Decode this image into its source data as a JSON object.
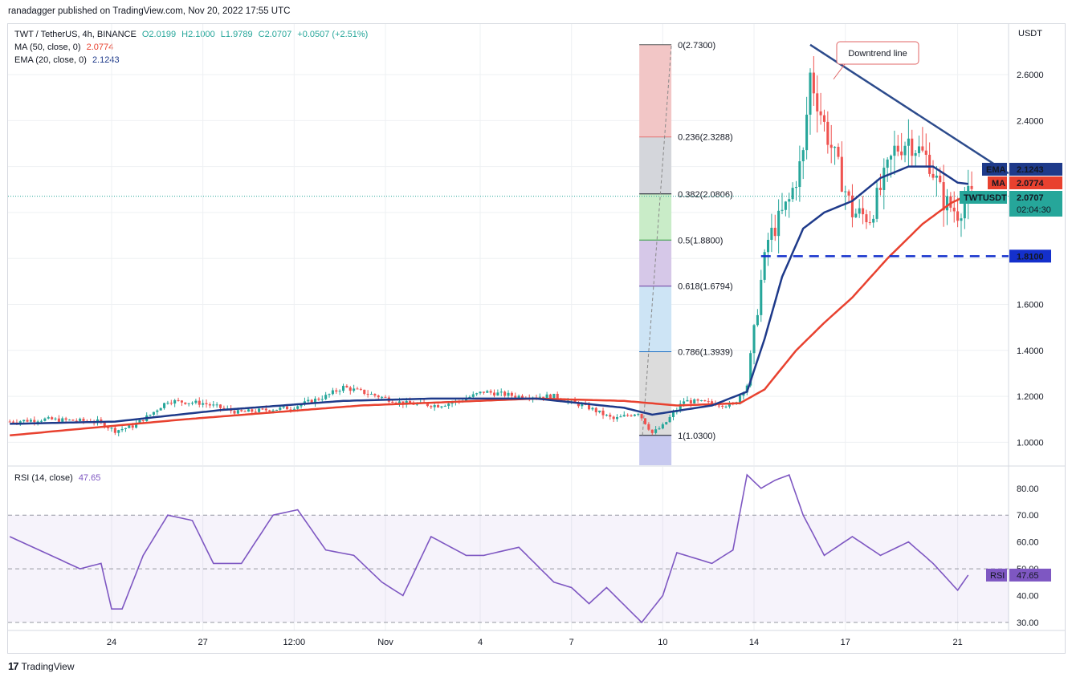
{
  "publisher": "ranadagger published on TradingView.com, Nov 20, 2022 17:55 UTC",
  "legend": {
    "symbol": "TWT / TetherUS, 4h, BINANCE",
    "o": "O2.0199",
    "h": "H2.1000",
    "l": "L1.9789",
    "c": "C2.0707",
    "change": "+0.0507 (+2.51%)",
    "ma_label": "MA (50, close, 0)",
    "ma_value": "2.0774",
    "ema_label": "EMA (20, close, 0)",
    "ema_value": "2.1243"
  },
  "rsi_legend": {
    "label": "RSI (14, close)",
    "value": "47.65"
  },
  "footer": {
    "logo": "17",
    "brand": "TradingView"
  },
  "annotation": "Downtrend line",
  "colors": {
    "up": "#26a69a",
    "down": "#ef5350",
    "ema": "#1e3a8a",
    "ma": "#e8412f",
    "rsi": "#7e57c2",
    "trend": "#2c4b8c",
    "support": "#1430cc"
  },
  "chart_data": {
    "type": "candlestick",
    "price_axis": {
      "unit": "USDT",
      "ticks": [
        "2.6000",
        "2.4000",
        "2.2000",
        "2.0000",
        "1.8000",
        "1.6000",
        "1.4000",
        "1.2000",
        "1.0000"
      ],
      "ylim": [
        0.9,
        2.82
      ]
    },
    "rsi_axis": {
      "ticks": [
        "80.00",
        "70.00",
        "60.00",
        "50.00",
        "40.00",
        "30.00"
      ],
      "ylim": [
        27,
        88
      ],
      "bands": [
        30,
        50,
        70
      ]
    },
    "x_ticks": [
      "24",
      "27",
      "12:00",
      "Nov",
      "4",
      "7",
      "10",
      "14",
      "17",
      "21"
    ],
    "x_tick_pos": [
      29,
      55,
      81,
      107,
      134,
      160,
      186,
      212,
      238,
      270
    ],
    "n_candles": 275,
    "price_path": [
      [
        0,
        1.09
      ],
      [
        10,
        1.1
      ],
      [
        25,
        1.09
      ],
      [
        30,
        1.05
      ],
      [
        35,
        1.07
      ],
      [
        40,
        1.12
      ],
      [
        45,
        1.18
      ],
      [
        55,
        1.17
      ],
      [
        65,
        1.13
      ],
      [
        80,
        1.15
      ],
      [
        90,
        1.2
      ],
      [
        95,
        1.24
      ],
      [
        105,
        1.2
      ],
      [
        112,
        1.17
      ],
      [
        122,
        1.16
      ],
      [
        128,
        1.18
      ],
      [
        135,
        1.22
      ],
      [
        145,
        1.2
      ],
      [
        155,
        1.2
      ],
      [
        165,
        1.15
      ],
      [
        172,
        1.1
      ],
      [
        179,
        1.13
      ],
      [
        183,
        1.04
      ],
      [
        186,
        1.07
      ],
      [
        192,
        1.18
      ],
      [
        200,
        1.17
      ],
      [
        206,
        1.16
      ],
      [
        210,
        1.25
      ],
      [
        214,
        1.7
      ],
      [
        216,
        1.88
      ],
      [
        222,
        2.05
      ],
      [
        226,
        2.25
      ],
      [
        228,
        2.6
      ],
      [
        232,
        2.38
      ],
      [
        240,
        2.0
      ],
      [
        245,
        1.98
      ],
      [
        248,
        2.1
      ],
      [
        252,
        2.27
      ],
      [
        256,
        2.32
      ],
      [
        262,
        2.22
      ],
      [
        266,
        2.05
      ],
      [
        270,
        2.0
      ],
      [
        273,
        2.07
      ]
    ],
    "ema20_path": [
      [
        0,
        1.08
      ],
      [
        30,
        1.09
      ],
      [
        60,
        1.14
      ],
      [
        95,
        1.18
      ],
      [
        120,
        1.19
      ],
      [
        150,
        1.19
      ],
      [
        175,
        1.15
      ],
      [
        183,
        1.12
      ],
      [
        200,
        1.16
      ],
      [
        210,
        1.22
      ],
      [
        215,
        1.45
      ],
      [
        220,
        1.72
      ],
      [
        226,
        1.93
      ],
      [
        232,
        2.0
      ],
      [
        240,
        2.05
      ],
      [
        248,
        2.15
      ],
      [
        256,
        2.2
      ],
      [
        263,
        2.2
      ],
      [
        270,
        2.13
      ],
      [
        273,
        2.1243
      ]
    ],
    "ma50_path": [
      [
        0,
        1.03
      ],
      [
        50,
        1.1
      ],
      [
        100,
        1.16
      ],
      [
        150,
        1.19
      ],
      [
        175,
        1.18
      ],
      [
        190,
        1.16
      ],
      [
        208,
        1.17
      ],
      [
        215,
        1.23
      ],
      [
        224,
        1.4
      ],
      [
        232,
        1.52
      ],
      [
        240,
        1.63
      ],
      [
        250,
        1.8
      ],
      [
        260,
        1.95
      ],
      [
        268,
        2.04
      ],
      [
        273,
        2.0774
      ]
    ],
    "rsi_path": [
      [
        0,
        62
      ],
      [
        20,
        50
      ],
      [
        26,
        52
      ],
      [
        29,
        35
      ],
      [
        32,
        35
      ],
      [
        38,
        55
      ],
      [
        45,
        70
      ],
      [
        52,
        68
      ],
      [
        58,
        52
      ],
      [
        66,
        52
      ],
      [
        75,
        70
      ],
      [
        82,
        72
      ],
      [
        90,
        57
      ],
      [
        98,
        55
      ],
      [
        106,
        45
      ],
      [
        112,
        40
      ],
      [
        120,
        62
      ],
      [
        130,
        55
      ],
      [
        135,
        55
      ],
      [
        145,
        58
      ],
      [
        155,
        45
      ],
      [
        160,
        43
      ],
      [
        165,
        37
      ],
      [
        170,
        43
      ],
      [
        180,
        30
      ],
      [
        186,
        40
      ],
      [
        190,
        56
      ],
      [
        200,
        52
      ],
      [
        206,
        57
      ],
      [
        210,
        85
      ],
      [
        214,
        80
      ],
      [
        218,
        83
      ],
      [
        222,
        85
      ],
      [
        226,
        70
      ],
      [
        232,
        55
      ],
      [
        240,
        62
      ],
      [
        248,
        55
      ],
      [
        256,
        60
      ],
      [
        263,
        52
      ],
      [
        270,
        42
      ],
      [
        273,
        47.65
      ]
    ],
    "fib_levels": [
      {
        "ratio": 0,
        "price": 2.73,
        "label": "0(2.7300)"
      },
      {
        "ratio": 0.236,
        "price": 2.3288,
        "label": "0.236(2.3288)"
      },
      {
        "ratio": 0.382,
        "price": 2.0806,
        "label": "0.382(2.0806)"
      },
      {
        "ratio": 0.5,
        "price": 1.88,
        "label": "0.5(1.8800)"
      },
      {
        "ratio": 0.618,
        "price": 1.6794,
        "label": "0.618(1.6794)"
      },
      {
        "ratio": 0.786,
        "price": 1.3939,
        "label": "0.786(1.3939)"
      },
      {
        "ratio": 1,
        "price": 1.03,
        "label": "1(1.0300)"
      }
    ],
    "support": {
      "price": 1.81,
      "label": "1.8100"
    },
    "downtrend": {
      "from": [
        228,
        2.73
      ],
      "to": [
        275,
        2.17
      ]
    },
    "price_tags": [
      {
        "name": "EMA",
        "value": "2.1243",
        "color": "#1e3a8a",
        "price": 2.1243
      },
      {
        "name": "MA",
        "value": "2.0774",
        "color": "#e8412f",
        "price": 2.0774
      },
      {
        "name": "TWTUSDT",
        "value": "2.0707",
        "sub": "02:04:30",
        "color": "#26a69a",
        "price": 2.0707
      }
    ],
    "rsi_tag": {
      "name": "RSI",
      "value": "47.65"
    }
  }
}
